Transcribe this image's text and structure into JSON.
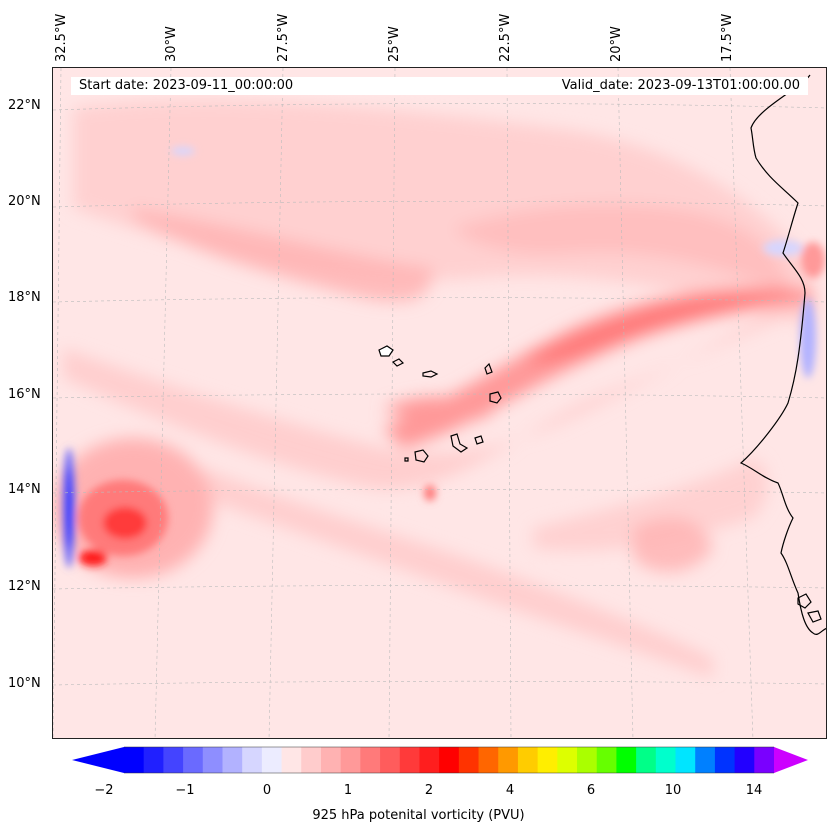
{
  "map": {
    "start_date": "Start date: 2023-09-11_00:00:00",
    "valid_date": "Valid_date: 2023-09-13T01:00:00.00",
    "lon_labels": [
      "32.5°W",
      "30°W",
      "27.5°W",
      "25°W",
      "22.5°W",
      "20°W",
      "17.5°W"
    ],
    "lat_labels": [
      "22°N",
      "20°N",
      "18°N",
      "16°N",
      "14°N",
      "12°N",
      "10°N"
    ],
    "background_color": "#ffe6e6",
    "coastline_color": "#000000"
  },
  "colorbar": {
    "label": "925 hPa potenital vorticity (PVU)",
    "tick_labels": [
      "−2",
      "−1",
      "0",
      "1",
      "2",
      "4",
      "6",
      "10",
      "14"
    ],
    "colors": [
      "#0000ff",
      "#2020ff",
      "#4444ff",
      "#6a6aff",
      "#8e8eff",
      "#b2b2ff",
      "#d6d6ff",
      "#ececff",
      "#ffe6e6",
      "#ffcccc",
      "#ffb2b2",
      "#ff9999",
      "#ff7a7a",
      "#ff5c5c",
      "#ff3a3a",
      "#ff1e1e",
      "#ff0000",
      "#ff3300",
      "#ff6600",
      "#ff9900",
      "#ffcc00",
      "#ffee00",
      "#ddff00",
      "#aaff00",
      "#66ff00",
      "#00ff00",
      "#00ff88",
      "#00ffcc",
      "#00e5ff",
      "#0080ff",
      "#0033ff",
      "#2200ff",
      "#7a00ff"
    ],
    "extend_min_color": "#0000ff",
    "extend_max_color": "#cc00ff"
  }
}
